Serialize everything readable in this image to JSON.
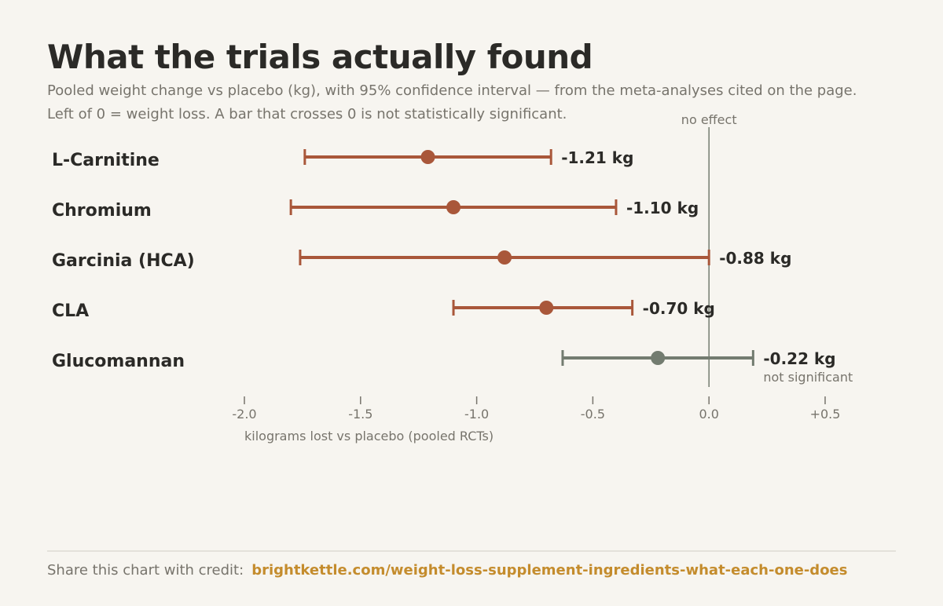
{
  "header": {
    "title": "What the trials actually found",
    "subtitle_line1": "Pooled weight change vs placebo (kg), with 95% confidence interval — from the meta-analyses cited on the page.",
    "subtitle_line2": "Left of 0 = weight loss. A bar that crosses 0 is not statistically significant."
  },
  "colors": {
    "significant": "#a9573a",
    "not_significant": "#737c70",
    "zero_line": "#737c70",
    "text": "#2b2a27",
    "muted": "#77746c"
  },
  "chart_data": {
    "type": "forest",
    "xlabel": "kilograms lost vs placebo (pooled RCTs)",
    "xlim": [
      -2.0,
      0.5
    ],
    "ticks": [
      {
        "value": -2.0,
        "label": "-2.0"
      },
      {
        "value": -1.5,
        "label": "-1.5"
      },
      {
        "value": -1.0,
        "label": "-1.0"
      },
      {
        "value": -0.5,
        "label": "-0.5"
      },
      {
        "value": 0.0,
        "label": "0.0"
      },
      {
        "value": 0.5,
        "label": "+0.5"
      }
    ],
    "reference_line": {
      "value": 0,
      "label": "no effect"
    },
    "rows": [
      {
        "name": "L-Carnitine",
        "estimate": -1.21,
        "ci_low": -1.74,
        "ci_high": -0.68,
        "value_label": "-1.21 kg",
        "significant": true,
        "note": ""
      },
      {
        "name": "Chromium",
        "estimate": -1.1,
        "ci_low": -1.8,
        "ci_high": -0.4,
        "value_label": "-1.10 kg",
        "significant": true,
        "note": ""
      },
      {
        "name": "Garcinia (HCA)",
        "estimate": -0.88,
        "ci_low": -1.76,
        "ci_high": 0.0,
        "value_label": "-0.88 kg",
        "significant": true,
        "note": ""
      },
      {
        "name": "CLA",
        "estimate": -0.7,
        "ci_low": -1.1,
        "ci_high": -0.33,
        "value_label": "-0.70 kg",
        "significant": true,
        "note": ""
      },
      {
        "name": "Glucomannan",
        "estimate": -0.22,
        "ci_low": -0.63,
        "ci_high": 0.19,
        "value_label": "-0.22 kg",
        "significant": false,
        "note": "not significant"
      }
    ]
  },
  "footer": {
    "credit_label": "Share this chart with credit:",
    "url": "brightkettle.com/weight-loss-supplement-ingredients-what-each-one-does"
  }
}
